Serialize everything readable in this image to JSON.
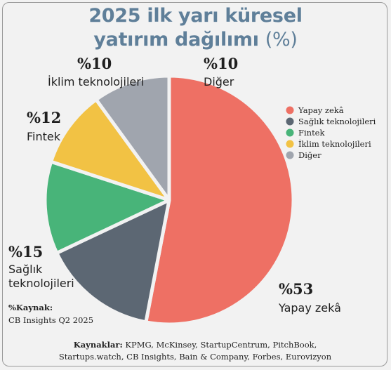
{
  "title": {
    "line1": "2025 ilk yarı küresel",
    "line2": "yatırım dağılımı",
    "unit": "(%)"
  },
  "chart_data": {
    "type": "pie",
    "title": "2025 ilk yarı küresel yatırım dağılımı (%)",
    "slices": [
      {
        "name": "Yapay zekâ",
        "legend": "Yapay zekâ",
        "pct_label": "%53",
        "value": 53,
        "color": "#ee7064"
      },
      {
        "name": "Sağlık teknolojileri",
        "legend": "Sağlık teknolojileri",
        "pct_label": "%15",
        "value": 15,
        "color": "#5c6773"
      },
      {
        "name": "Fintek",
        "legend": "Fintek",
        "pct_label": "%12",
        "value": 12,
        "color": "#48b479"
      },
      {
        "name": "İklim teknolojileri",
        "legend": "İklim teknolojileri",
        "pct_label": "%10",
        "value": 10,
        "color": "#f2c244"
      },
      {
        "name": "Diğer",
        "legend": "Diğer",
        "pct_label": "%10",
        "value": 10,
        "color": "#a0a5ae"
      }
    ],
    "legend_position": "right"
  },
  "slice_labels": {
    "ai": [
      "Yapay zekâ"
    ],
    "health": [
      "Sağlık",
      "teknolojileri"
    ],
    "fintech": [
      "Fintek"
    ],
    "climate": [
      "İklim teknolojileri"
    ],
    "other": [
      "Diğer"
    ]
  },
  "source_note": {
    "label": "%Kaynak:",
    "text": "CB Insights Q2 2025"
  },
  "sources": {
    "label": "Kaynaklar:",
    "line1": "KPMG, McKinsey, StartupCentrum, PitchBook,",
    "line2": "Startups.watch, CB Insights, Bain & Company, Forbes, Eurovizyon"
  }
}
